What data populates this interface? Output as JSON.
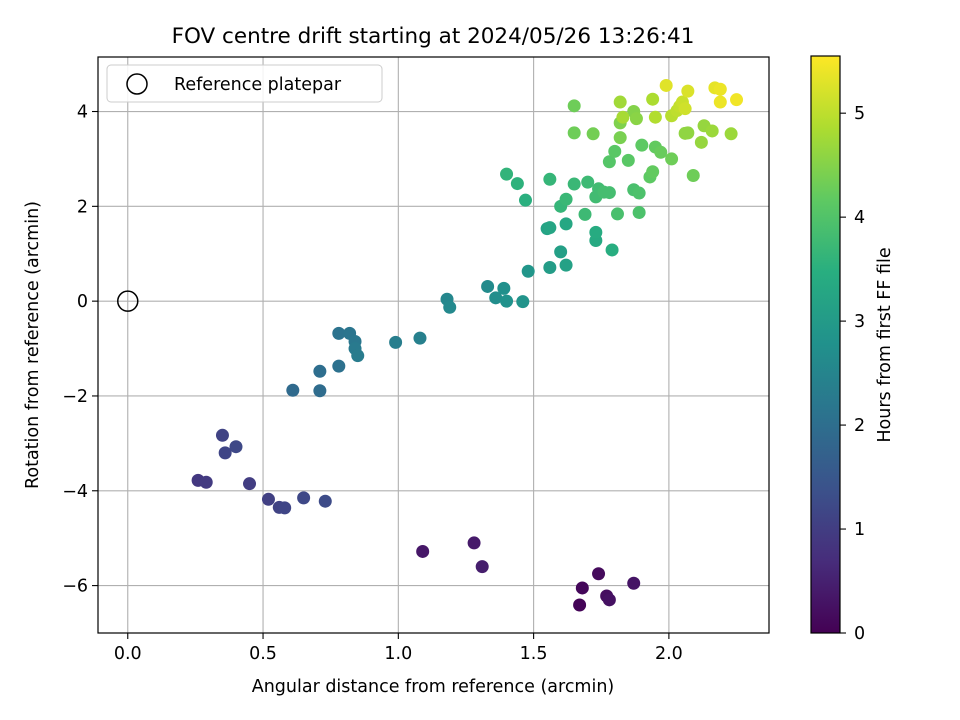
{
  "chart_data": {
    "type": "scatter",
    "title": "FOV centre drift starting at 2024/05/26 13:26:41",
    "xlabel": "Angular distance from reference (arcmin)",
    "ylabel": "Rotation from reference (arcmin)",
    "xlim": [
      -0.11,
      2.37
    ],
    "ylim": [
      -7.0,
      5.15
    ],
    "xticks": [
      0.0,
      0.5,
      1.0,
      1.5,
      2.0
    ],
    "xtick_labels": [
      "0.0",
      "0.5",
      "1.0",
      "1.5",
      "2.0"
    ],
    "yticks": [
      -6,
      -4,
      -2,
      0,
      2,
      4
    ],
    "ytick_labels": [
      "−6",
      "−4",
      "−2",
      "0",
      "2",
      "4"
    ],
    "grid": true,
    "legend": {
      "position": "upper-left",
      "entries": [
        "Reference platepar"
      ]
    },
    "reference_point": {
      "x": 0.0,
      "y": 0.0
    },
    "colorbar": {
      "label": "Hours from first FF file",
      "range": [
        0,
        5.55
      ],
      "ticks": [
        0,
        1,
        2,
        3,
        4,
        5
      ],
      "tick_labels": [
        "0",
        "1",
        "2",
        "3",
        "4",
        "5"
      ],
      "colormap": "viridis"
    },
    "series": [
      {
        "x_comment": "angular distance",
        "points": [
          [
            1.67,
            -6.41,
            0.05
          ],
          [
            1.68,
            -6.05,
            0.1
          ],
          [
            1.74,
            -5.75,
            0.15
          ],
          [
            1.77,
            -6.22,
            0.2
          ],
          [
            1.78,
            -6.3,
            0.25
          ],
          [
            1.87,
            -5.95,
            0.3
          ],
          [
            1.09,
            -5.28,
            0.35
          ],
          [
            1.28,
            -5.1,
            0.4
          ],
          [
            1.31,
            -5.6,
            0.45
          ],
          [
            0.26,
            -3.78,
            0.9
          ],
          [
            0.29,
            -3.82,
            0.95
          ],
          [
            0.45,
            -3.85,
            1.0
          ],
          [
            0.52,
            -4.18,
            1.05
          ],
          [
            0.56,
            -4.35,
            1.1
          ],
          [
            0.58,
            -4.36,
            1.15
          ],
          [
            0.65,
            -4.15,
            1.2
          ],
          [
            0.73,
            -4.22,
            1.25
          ],
          [
            0.35,
            -2.83,
            1.1
          ],
          [
            0.36,
            -3.2,
            1.15
          ],
          [
            0.4,
            -3.07,
            1.2
          ],
          [
            0.61,
            -1.88,
            1.9
          ],
          [
            0.71,
            -1.89,
            1.95
          ],
          [
            0.71,
            -1.48,
            2.0
          ],
          [
            0.78,
            -1.37,
            2.05
          ],
          [
            0.78,
            -0.68,
            2.1
          ],
          [
            0.82,
            -0.68,
            2.15
          ],
          [
            0.84,
            -0.85,
            2.2
          ],
          [
            0.84,
            -1.0,
            2.25
          ],
          [
            0.85,
            -1.15,
            2.3
          ],
          [
            0.99,
            -0.87,
            2.35
          ],
          [
            1.08,
            -0.78,
            2.4
          ],
          [
            1.18,
            0.04,
            2.55
          ],
          [
            1.19,
            -0.13,
            2.6
          ],
          [
            1.33,
            0.31,
            2.65
          ],
          [
            1.36,
            0.07,
            2.7
          ],
          [
            1.39,
            0.27,
            2.75
          ],
          [
            1.4,
            0.0,
            2.8
          ],
          [
            1.46,
            -0.01,
            2.85
          ],
          [
            1.48,
            0.63,
            2.9
          ],
          [
            1.56,
            0.71,
            3.05
          ],
          [
            1.6,
            1.04,
            3.1
          ],
          [
            1.62,
            0.76,
            3.15
          ],
          [
            1.55,
            1.53,
            3.2
          ],
          [
            1.56,
            1.55,
            3.25
          ],
          [
            1.62,
            1.63,
            3.3
          ],
          [
            1.73,
            1.28,
            3.35
          ],
          [
            1.73,
            1.45,
            3.4
          ],
          [
            1.79,
            1.08,
            3.45
          ],
          [
            1.47,
            2.13,
            3.5
          ],
          [
            1.44,
            2.48,
            3.55
          ],
          [
            1.4,
            2.68,
            3.6
          ],
          [
            1.56,
            2.57,
            3.65
          ],
          [
            1.6,
            2.0,
            3.65
          ],
          [
            1.62,
            2.15,
            3.7
          ],
          [
            1.65,
            2.47,
            3.7
          ],
          [
            1.69,
            1.83,
            3.75
          ],
          [
            1.7,
            2.51,
            3.75
          ],
          [
            1.73,
            2.2,
            3.8
          ],
          [
            1.74,
            2.37,
            3.8
          ],
          [
            1.76,
            2.3,
            3.85
          ],
          [
            1.78,
            2.29,
            3.85
          ],
          [
            1.81,
            1.84,
            3.9
          ],
          [
            1.87,
            2.35,
            3.9
          ],
          [
            1.89,
            2.28,
            3.95
          ],
          [
            1.89,
            1.87,
            3.95
          ],
          [
            1.78,
            2.94,
            4.05
          ],
          [
            1.8,
            3.16,
            4.1
          ],
          [
            1.85,
            2.97,
            4.1
          ],
          [
            1.9,
            3.29,
            4.15
          ],
          [
            1.93,
            2.62,
            4.15
          ],
          [
            1.94,
            2.73,
            4.2
          ],
          [
            1.95,
            3.25,
            4.2
          ],
          [
            1.97,
            3.14,
            4.25
          ],
          [
            2.01,
            3.0,
            4.3
          ],
          [
            2.09,
            2.65,
            4.3
          ],
          [
            1.65,
            4.12,
            4.3
          ],
          [
            1.65,
            3.55,
            4.3
          ],
          [
            1.72,
            3.53,
            4.35
          ],
          [
            1.82,
            3.45,
            4.4
          ],
          [
            1.82,
            3.76,
            4.45
          ],
          [
            1.87,
            4.0,
            4.5
          ],
          [
            1.88,
            3.85,
            4.55
          ],
          [
            2.06,
            3.54,
            4.6
          ],
          [
            2.07,
            3.55,
            4.6
          ],
          [
            2.12,
            3.35,
            4.65
          ],
          [
            2.13,
            3.7,
            4.65
          ],
          [
            2.16,
            3.59,
            4.7
          ],
          [
            2.23,
            3.53,
            4.7
          ],
          [
            1.82,
            4.2,
            4.75
          ],
          [
            1.83,
            3.88,
            4.8
          ],
          [
            1.94,
            4.26,
            4.85
          ],
          [
            1.95,
            3.88,
            4.9
          ],
          [
            2.01,
            3.91,
            4.95
          ],
          [
            2.03,
            4.02,
            5.0
          ],
          [
            2.04,
            4.11,
            5.05
          ],
          [
            2.05,
            4.2,
            5.1
          ],
          [
            2.06,
            4.06,
            5.15
          ],
          [
            2.07,
            4.43,
            5.25
          ],
          [
            1.99,
            4.55,
            5.3
          ],
          [
            2.17,
            4.5,
            5.35
          ],
          [
            2.19,
            4.47,
            5.4
          ],
          [
            2.19,
            4.2,
            5.4
          ],
          [
            2.25,
            4.25,
            5.45
          ]
        ]
      }
    ]
  }
}
